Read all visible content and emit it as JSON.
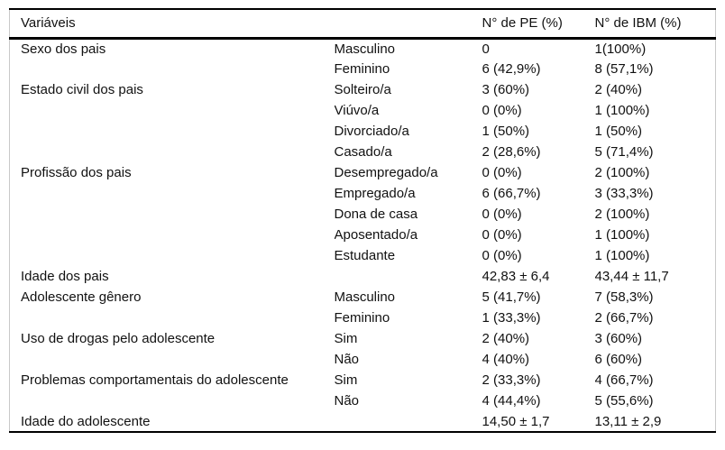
{
  "table": {
    "headers": {
      "variable": "Variáveis",
      "category": "",
      "pe": "N° de PE (%)",
      "ibm": "N° de IBM (%)"
    },
    "rows": [
      {
        "variable": "Sexo dos pais",
        "category": "Masculino",
        "pe": "0",
        "ibm": "1(100%)"
      },
      {
        "variable": "",
        "category": "Feminino",
        "pe": "6 (42,9%)",
        "ibm": "8 (57,1%)"
      },
      {
        "variable": "Estado civil dos pais",
        "category": "Solteiro/a",
        "pe": "3 (60%)",
        "ibm": "2 (40%)"
      },
      {
        "variable": "",
        "category": "Viúvo/a",
        "pe": "0 (0%)",
        "ibm": "1 (100%)"
      },
      {
        "variable": "",
        "category": "Divorciado/a",
        "pe": "1 (50%)",
        "ibm": "1 (50%)"
      },
      {
        "variable": "",
        "category": "Casado/a",
        "pe": "2 (28,6%)",
        "ibm": "5 (71,4%)"
      },
      {
        "variable": "Profissão dos pais",
        "category": "Desempregado/a",
        "pe": "0 (0%)",
        "ibm": "2 (100%)"
      },
      {
        "variable": "",
        "category": "Empregado/a",
        "pe": "6 (66,7%)",
        "ibm": "3 (33,3%)"
      },
      {
        "variable": "",
        "category": "Dona de casa",
        "pe": "0 (0%)",
        "ibm": "2 (100%)"
      },
      {
        "variable": "",
        "category": "Aposentado/a",
        "pe": "0 (0%)",
        "ibm": "1 (100%)"
      },
      {
        "variable": "",
        "category": "Estudante",
        "pe": "0 (0%)",
        "ibm": "1 (100%)"
      },
      {
        "variable": "Idade dos pais",
        "category": "",
        "pe": "42,83 ± 6,4",
        "ibm": "43,44 ± 11,7"
      },
      {
        "variable": "Adolescente gênero",
        "category": "Masculino",
        "pe": "5 (41,7%)",
        "ibm": "7 (58,3%)"
      },
      {
        "variable": "",
        "category": "Feminino",
        "pe": "1 (33,3%)",
        "ibm": "2 (66,7%)"
      },
      {
        "variable": "Uso de drogas pelo adolescente",
        "category": "Sim",
        "pe": "2 (40%)",
        "ibm": "3 (60%)"
      },
      {
        "variable": "",
        "category": "Não",
        "pe": "4 (40%)",
        "ibm": "6 (60%)"
      },
      {
        "variable": "Problemas comportamentais do adolescente",
        "category": "Sim",
        "pe": "2 (33,3%)",
        "ibm": "4 (66,7%)"
      },
      {
        "variable": "",
        "category": "Não",
        "pe": "4 (44,4%)",
        "ibm": "5 (55,6%)"
      },
      {
        "variable": "Idade do adolescente",
        "category": "",
        "pe": "14,50 ± 1,7",
        "ibm": "13,11 ± 2,9"
      }
    ],
    "colors": {
      "rule": "#000000",
      "outer_border": "#c9c9c9",
      "text": "#111111",
      "background": "#ffffff"
    }
  }
}
